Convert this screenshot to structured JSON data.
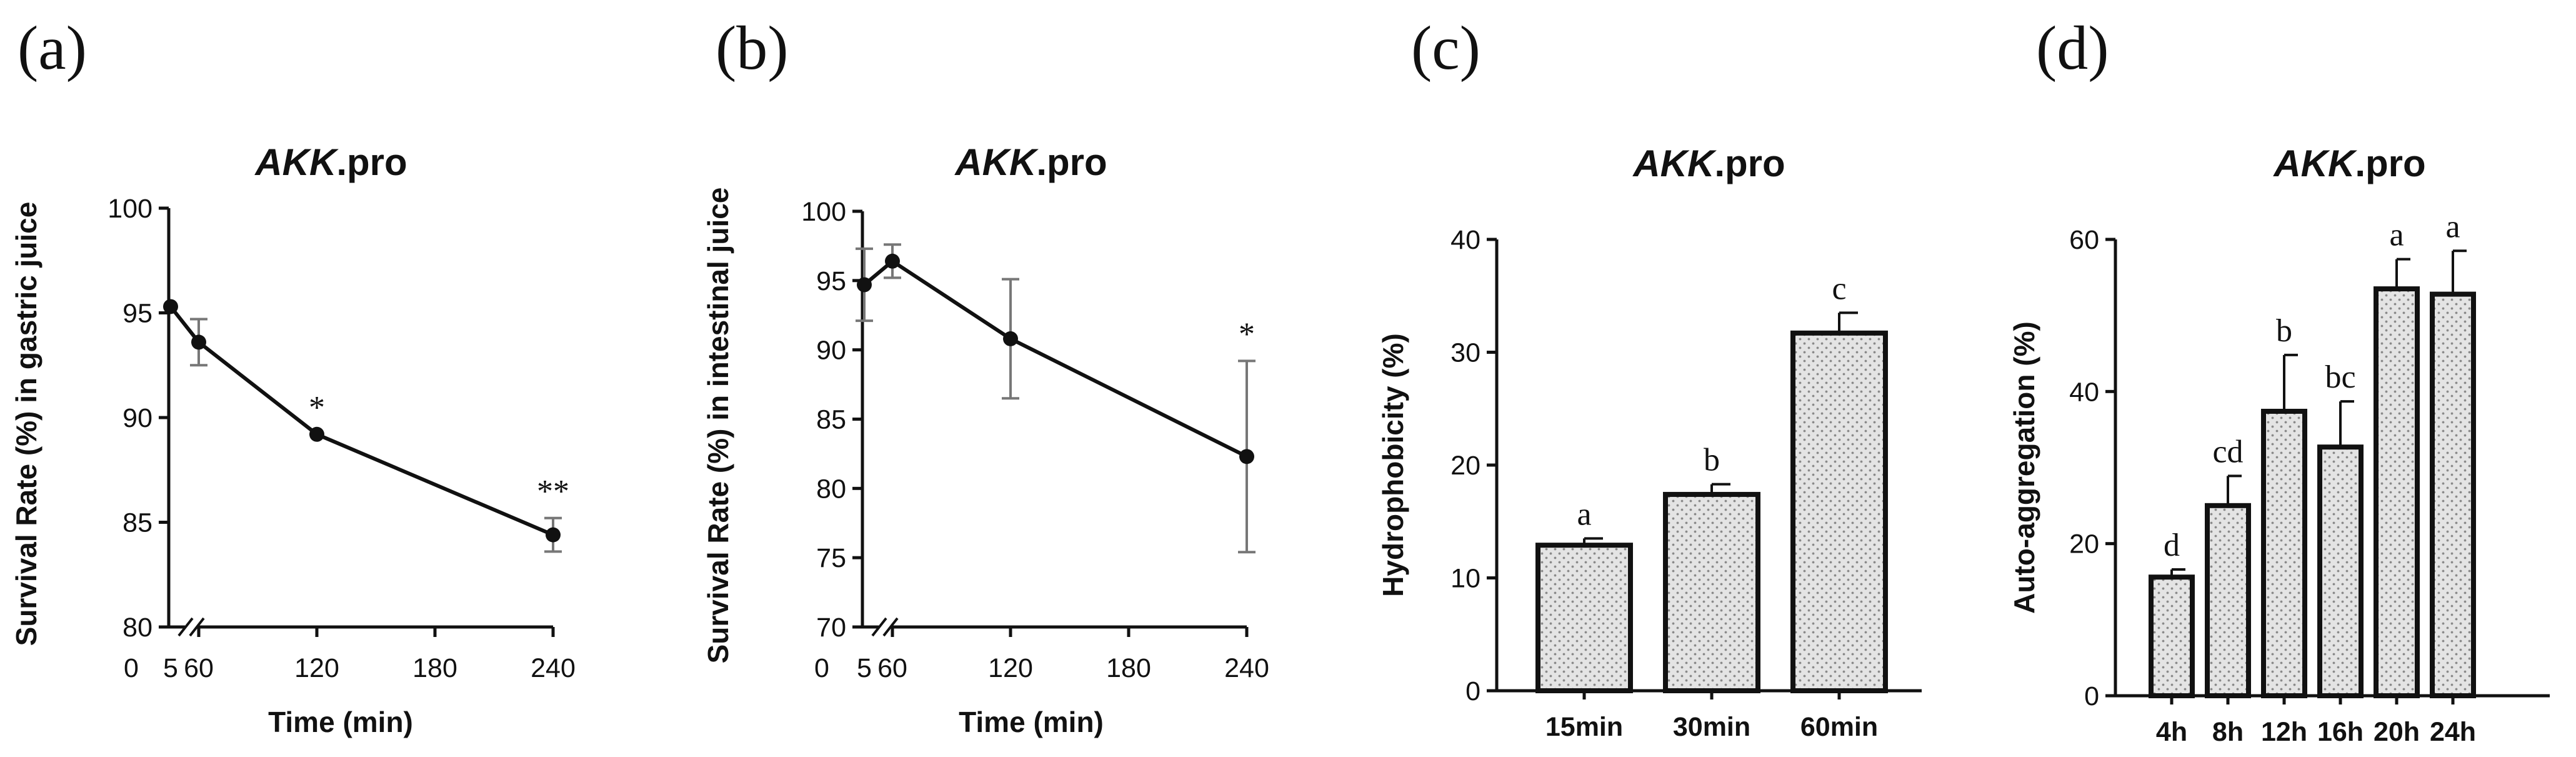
{
  "panels": {
    "a": {
      "letter": "(a)"
    },
    "b": {
      "letter": "(b)"
    },
    "c": {
      "letter": "(c)"
    },
    "d": {
      "letter": "(d)"
    }
  },
  "chart_data": [
    {
      "id": "a",
      "type": "line",
      "title_italic": "AKK",
      "title_rest": ".pro",
      "xlabel": "Time (min)",
      "ylabel": "Survival Rate (%) in gastric juice",
      "ylim": [
        80,
        100
      ],
      "yticks": [
        80,
        85,
        90,
        95,
        100
      ],
      "xticks": [
        "0",
        "5",
        "60",
        "120",
        "180",
        "240"
      ],
      "axis_break": true,
      "points": [
        {
          "x": 5,
          "y": 95.3,
          "err": 0
        },
        {
          "x": 60,
          "y": 93.6,
          "err": 1.1
        },
        {
          "x": 120,
          "y": 89.2,
          "err": 0,
          "label": "*"
        },
        {
          "x": 240,
          "y": 84.4,
          "err": 0.8,
          "label": "**"
        }
      ]
    },
    {
      "id": "b",
      "type": "line",
      "title_italic": "AKK",
      "title_rest": ".pro",
      "xlabel": "Time (min)",
      "ylabel": "Survival Rate (%) in intestinal juice",
      "ylim": [
        70,
        100
      ],
      "yticks": [
        70,
        75,
        80,
        85,
        90,
        95,
        100
      ],
      "xticks": [
        "0",
        "5",
        "60",
        "120",
        "180",
        "240"
      ],
      "axis_break": true,
      "points": [
        {
          "x": 5,
          "y": 94.7,
          "err": 2.6
        },
        {
          "x": 60,
          "y": 96.4,
          "err": 1.2
        },
        {
          "x": 120,
          "y": 90.8,
          "err": 4.3
        },
        {
          "x": 240,
          "y": 82.3,
          "err": 6.9,
          "label": "*"
        }
      ]
    },
    {
      "id": "c",
      "type": "bar",
      "title_italic": "AKK",
      "title_rest": ".pro",
      "xlabel": "",
      "ylabel": "Hydrophobicity (%)",
      "ylim": [
        0,
        40
      ],
      "yticks": [
        0,
        10,
        20,
        30,
        40
      ],
      "categories": [
        "15min",
        "30min",
        "60min"
      ],
      "values": [
        12.9,
        17.4,
        31.7
      ],
      "errors": [
        0.6,
        0.9,
        1.8
      ],
      "letters": [
        "a",
        "b",
        "c"
      ]
    },
    {
      "id": "d",
      "type": "bar",
      "title_italic": "AKK",
      "title_rest": ".pro",
      "xlabel": "",
      "ylabel": "Auto-aggregation (%)",
      "ylim": [
        0,
        60
      ],
      "yticks": [
        0,
        20,
        40,
        60
      ],
      "categories": [
        "4h",
        "8h",
        "12h",
        "16h",
        "20h",
        "24h"
      ],
      "values": [
        15.6,
        25.0,
        37.4,
        32.7,
        53.5,
        52.8
      ],
      "errors": [
        1.0,
        3.9,
        7.4,
        6.0,
        3.9,
        5.7
      ],
      "letters": [
        "d",
        "cd",
        "b",
        "bc",
        "a",
        "a"
      ]
    }
  ]
}
